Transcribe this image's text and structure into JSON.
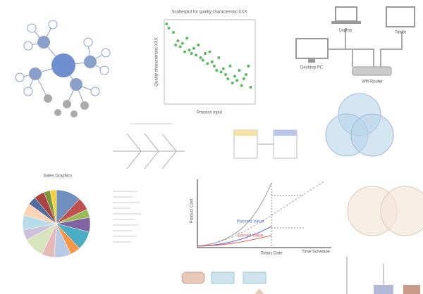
{
  "scatter": {
    "title": "Scatterplot for quality characteristic XXX",
    "x_label": "Process input",
    "y_label": "Quality characteristic XXX",
    "xlim": [
      0,
      40
    ],
    "ylim": [
      0,
      100
    ],
    "x": [
      1,
      2,
      4,
      5,
      6,
      7,
      8,
      9,
      10,
      11,
      12,
      13,
      14,
      15,
      16,
      17,
      18,
      19,
      20,
      21,
      22,
      23,
      24,
      25,
      26,
      27,
      28,
      29,
      30,
      31,
      32,
      33,
      34,
      35,
      36,
      37,
      38
    ],
    "y": [
      95,
      90,
      85,
      70,
      75,
      68,
      72,
      62,
      78,
      64,
      60,
      66,
      58,
      70,
      55,
      52,
      60,
      48,
      62,
      50,
      45,
      40,
      55,
      38,
      42,
      35,
      30,
      45,
      25,
      33,
      28,
      40,
      22,
      30,
      35,
      45,
      20
    ]
  },
  "network": {
    "laptop": "Laptop",
    "tablet": "Tablet",
    "desktop": "Desktop PC",
    "router": "Wifi Router"
  },
  "pie": {
    "title": "Sales Graphics",
    "values": [
      12,
      6,
      4,
      7,
      9,
      5,
      8,
      6,
      10,
      5,
      7,
      6,
      4,
      5,
      3,
      3
    ],
    "colors": [
      "#6f8fbf",
      "#c0504d",
      "#9bbb59",
      "#8064a2",
      "#4bacc6",
      "#f79646",
      "#b7c9e4",
      "#e6b9b8",
      "#d7e4bd",
      "#ccc1da",
      "#b7dee8",
      "#fbd5b5",
      "#4f6f9f",
      "#a94442",
      "#7a9a3a",
      "#f4d03f"
    ]
  },
  "cost_chart": {
    "y_label": "Product Cost",
    "x_label": "Time Schedule",
    "status": "Status Date",
    "planned": "Planned Value",
    "earned": "Earned Value"
  }
}
